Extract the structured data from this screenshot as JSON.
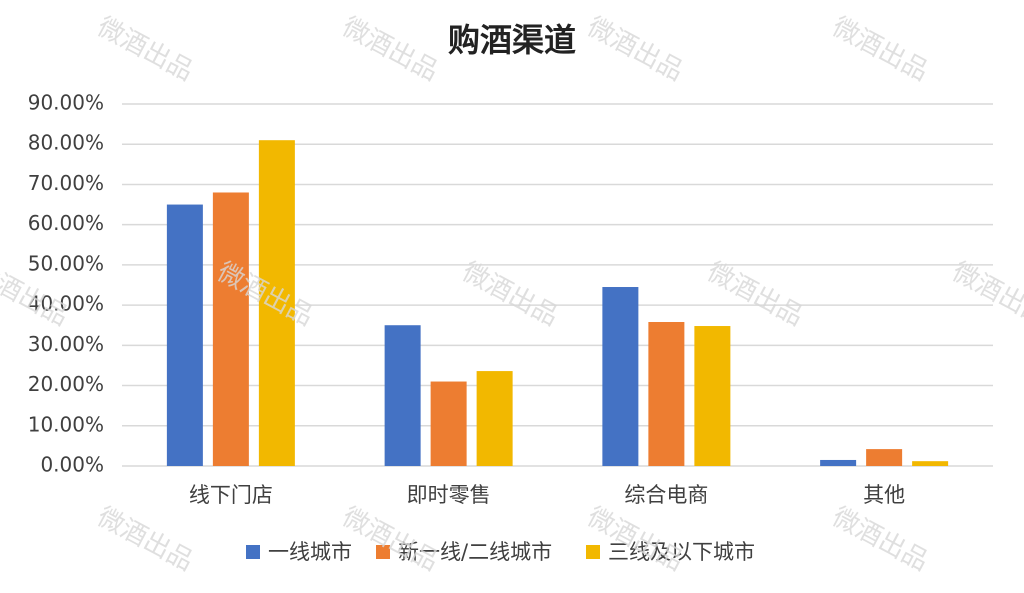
{
  "chart_data": {
    "type": "bar",
    "title": "购酒渠道",
    "watermark": "微酒出品",
    "categories": [
      "线下门店",
      "即时零售",
      "综合电商",
      "其他"
    ],
    "series": [
      {
        "name": "一线城市",
        "color": "#4472c4",
        "values": [
          65,
          35,
          44.5,
          1.5
        ]
      },
      {
        "name": "新一线/二线城市",
        "color": "#ed7d31",
        "values": [
          68,
          21,
          35.8,
          4.2
        ]
      },
      {
        "name": "三线及以下城市",
        "color": "#f2b800",
        "values": [
          81,
          23.6,
          34.8,
          1.2
        ]
      }
    ],
    "ylim": [
      0,
      90
    ],
    "yticks": [
      {
        "value": 0,
        "label": "0.00%"
      },
      {
        "value": 10,
        "label": "10.00%"
      },
      {
        "value": 20,
        "label": "20.00%"
      },
      {
        "value": 30,
        "label": "30.00%"
      },
      {
        "value": 40,
        "label": "40.00%"
      },
      {
        "value": 50,
        "label": "50.00%"
      },
      {
        "value": 60,
        "label": "60.00%"
      },
      {
        "value": 70,
        "label": "70.00%"
      },
      {
        "value": 80,
        "label": "80.00%"
      },
      {
        "value": 90,
        "label": "90.00%"
      }
    ],
    "grid": true,
    "legend": "bottom"
  }
}
